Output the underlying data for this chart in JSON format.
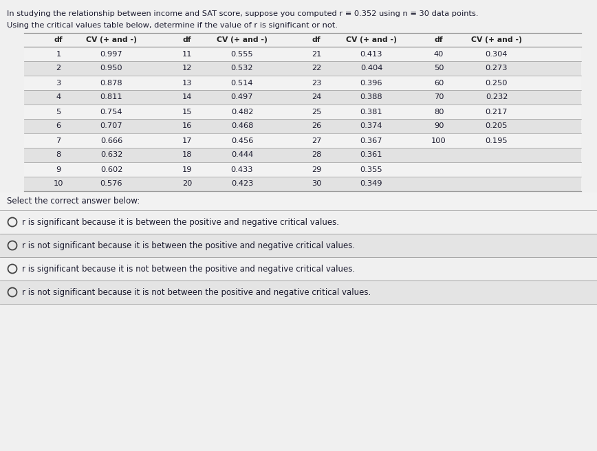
{
  "title_line1": "In studying the relationship between income and SAT score, suppose you computed r ≡ 0.352 using n ≡ 30 data points.",
  "title_line2": "Using the critical values table below, determine if the value of r is significant or not.",
  "header": [
    "df",
    "CV (+ and -)",
    "df",
    "CV (+ and -)",
    "df",
    "CV (+ and -)",
    "df",
    "CV (+ and -)"
  ],
  "table_data": [
    [
      1,
      "0.997",
      11,
      "0.555",
      21,
      "0.413",
      40,
      "0.304"
    ],
    [
      2,
      "0.950",
      12,
      "0.532",
      22,
      "0.404",
      50,
      "0.273"
    ],
    [
      3,
      "0.878",
      13,
      "0.514",
      23,
      "0.396",
      60,
      "0.250"
    ],
    [
      4,
      "0.811",
      14,
      "0.497",
      24,
      "0.388",
      70,
      "0.232"
    ],
    [
      5,
      "0.754",
      15,
      "0.482",
      25,
      "0.381",
      80,
      "0.217"
    ],
    [
      6,
      "0.707",
      16,
      "0.468",
      26,
      "0.374",
      90,
      "0.205"
    ],
    [
      7,
      "0.666",
      17,
      "0.456",
      27,
      "0.367",
      100,
      "0.195"
    ],
    [
      8,
      "0.632",
      18,
      "0.444",
      28,
      "0.361",
      "",
      ""
    ],
    [
      9,
      "0.602",
      19,
      "0.433",
      29,
      "0.355",
      "",
      ""
    ],
    [
      10,
      "0.576",
      20,
      "0.423",
      30,
      "0.349",
      "",
      ""
    ]
  ],
  "select_label": "Select the correct answer below:",
  "options": [
    "r is significant because it is between the positive and negative critical values.",
    "r is not significant because it is between the positive and negative critical values.",
    "r is significant because it is not between the positive and negative critical values.",
    "r is not significant because it is not between the positive and negative critical values."
  ],
  "bg_color": "#d6d6d6",
  "white_bg": "#f0f0f0",
  "row_odd": "#f2f2f2",
  "row_even": "#e2e2e2",
  "text_color": "#1a1a2e",
  "line_color": "#999999",
  "header_text": "#222222",
  "option_bg_odd": "#f0f0f0",
  "option_bg_even": "#e4e4e4"
}
